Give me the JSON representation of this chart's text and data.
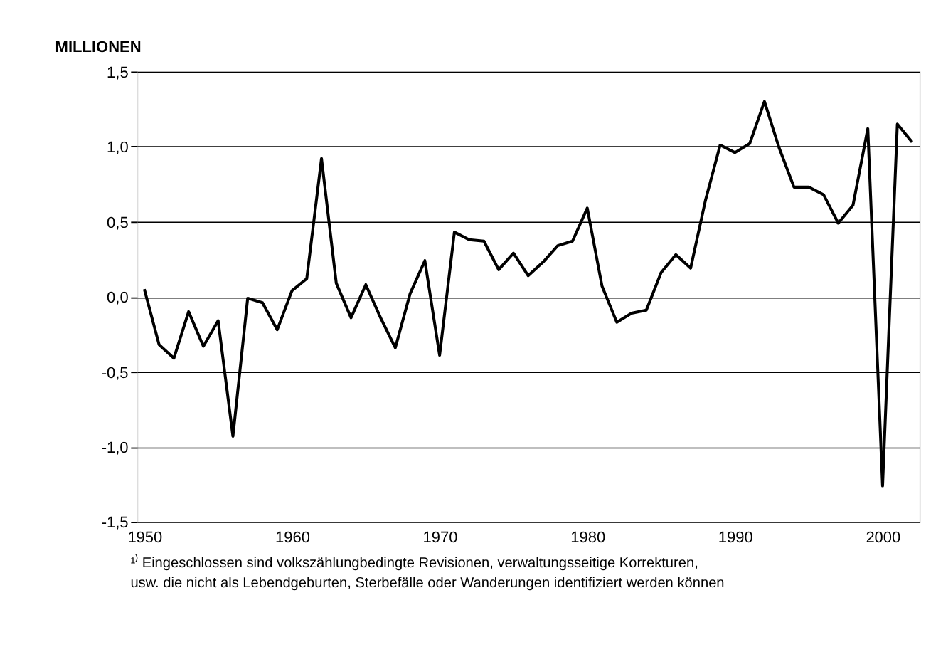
{
  "chart_data": {
    "type": "line",
    "title": "MILLIONEN",
    "x": [
      1950,
      1951,
      1952,
      1953,
      1954,
      1955,
      1956,
      1957,
      1958,
      1959,
      1960,
      1961,
      1962,
      1963,
      1964,
      1965,
      1966,
      1967,
      1968,
      1969,
      1970,
      1971,
      1972,
      1973,
      1974,
      1975,
      1976,
      1977,
      1978,
      1979,
      1980,
      1981,
      1982,
      1983,
      1984,
      1985,
      1986,
      1987,
      1988,
      1989,
      1990,
      1991,
      1992,
      1993,
      1994,
      1995,
      1996,
      1997,
      1998,
      1999,
      2000,
      2001,
      2002
    ],
    "series": [
      {
        "color": "#000000",
        "values": [
          0.05,
          -0.32,
          -0.41,
          -0.1,
          -0.33,
          -0.16,
          -0.93,
          -0.01,
          -0.04,
          -0.22,
          0.04,
          0.12,
          0.92,
          0.09,
          -0.14,
          0.08,
          -0.14,
          -0.34,
          0.02,
          0.24,
          -0.39,
          0.43,
          0.38,
          0.37,
          0.18,
          0.29,
          0.14,
          0.23,
          0.34,
          0.37,
          0.59,
          0.07,
          -0.17,
          -0.11,
          -0.09,
          0.16,
          0.28,
          0.19,
          0.64,
          1.01,
          0.96,
          1.02,
          1.3,
          0.99,
          0.73,
          0.73,
          0.68,
          0.49,
          0.61,
          1.12,
          -1.26,
          1.15,
          1.03
        ]
      }
    ],
    "xlim": [
      1949.5,
      2002.5
    ],
    "xticks": [
      1950,
      1960,
      1970,
      1980,
      1990,
      2000
    ],
    "ylim": [
      -1.5,
      1.5
    ],
    "yticks": [
      {
        "value": -1.5,
        "label": "-1,5"
      },
      {
        "value": -1.0,
        "label": "-1,0"
      },
      {
        "value": -0.5,
        "label": "-0,5"
      },
      {
        "value": 0,
        "label": "0,0"
      },
      {
        "value": 0.5,
        "label": "0,5"
      },
      {
        "value": 1.0,
        "label": "1,0"
      },
      {
        "value": 1.5,
        "label": "1,5"
      }
    ],
    "grid": "y",
    "marker": "none",
    "line_style": "solid",
    "annotations": [
      "¹⁾  Eingeschlossen sind volkszählungbedingte Revisionen, verwaltungsseitige Korrekturen,",
      "usw. die nicht als Lebendgeburten, Sterbefälle oder Wanderungen identifiziert werden können"
    ]
  }
}
